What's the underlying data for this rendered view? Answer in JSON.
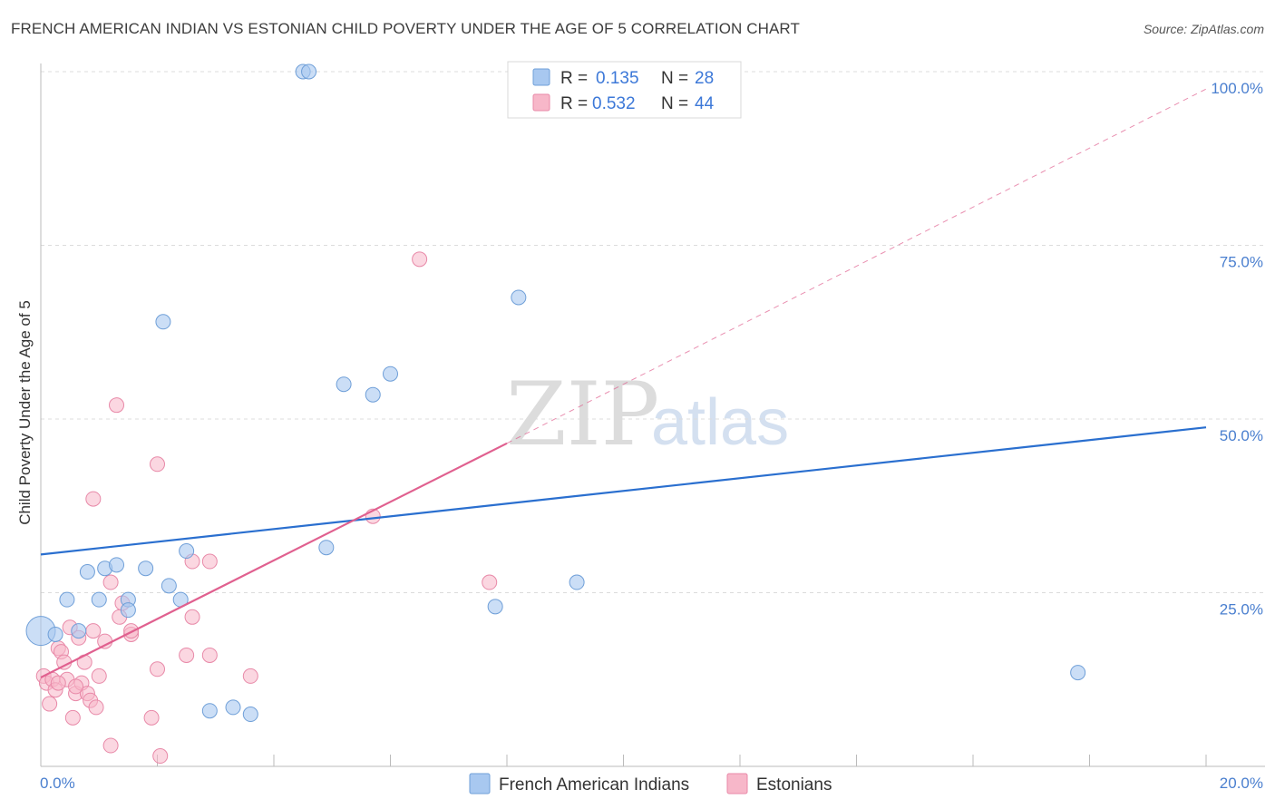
{
  "header": {
    "title": "FRENCH AMERICAN INDIAN VS ESTONIAN CHILD POVERTY UNDER THE AGE OF 5 CORRELATION CHART",
    "source": "Source: ZipAtlas.com"
  },
  "watermark": {
    "part1": "ZIP",
    "part2": "atlas"
  },
  "colors": {
    "blue_fill": "#a8c8f0",
    "blue_stroke": "#6f9fd8",
    "blue_line": "#2a6fcf",
    "pink_fill": "#f7b7c9",
    "pink_stroke": "#e889a8",
    "pink_line": "#e0608f"
  },
  "legend": {
    "rows": [
      {
        "r_label": "R =",
        "r_value": "0.135",
        "n_label": "N =",
        "n_value": "28"
      },
      {
        "r_label": "R =",
        "r_value": "0.532",
        "n_label": "N =",
        "n_value": "44"
      }
    ]
  },
  "chart_data": {
    "type": "scatter",
    "title": "FRENCH AMERICAN INDIAN VS ESTONIAN CHILD POVERTY UNDER THE AGE OF 5 CORRELATION CHART",
    "xlabel": "",
    "ylabel": "Child Poverty Under the Age of 5",
    "xlim": [
      0,
      20
    ],
    "ylim": [
      0,
      100
    ],
    "x_tick_labels": [
      {
        "value": 0,
        "label": "0.0%"
      },
      {
        "value": 20,
        "label": "20.0%"
      }
    ],
    "y_tick_labels": [
      {
        "value": 25,
        "label": "25.0%"
      },
      {
        "value": 50,
        "label": "50.0%"
      },
      {
        "value": 75,
        "label": "75.0%"
      },
      {
        "value": 100,
        "label": "100.0%"
      }
    ],
    "series": [
      {
        "name": "French American Indians",
        "r": 0.135,
        "n": 28,
        "trend": {
          "x": [
            0,
            20
          ],
          "y": [
            30.5,
            48.8
          ],
          "dashed_extension": false
        },
        "points": [
          [
            0.0,
            19.5
          ],
          [
            0.25,
            19.0
          ],
          [
            0.45,
            24.0
          ],
          [
            0.65,
            19.5
          ],
          [
            0.8,
            28.0
          ],
          [
            1.0,
            24.0
          ],
          [
            1.1,
            28.5
          ],
          [
            1.3,
            29.0
          ],
          [
            1.5,
            24.0
          ],
          [
            1.5,
            22.5
          ],
          [
            1.8,
            28.5
          ],
          [
            2.1,
            64.0
          ],
          [
            2.2,
            26.0
          ],
          [
            2.4,
            24.0
          ],
          [
            2.5,
            31.0
          ],
          [
            2.9,
            8.0
          ],
          [
            3.3,
            8.5
          ],
          [
            3.6,
            7.5
          ],
          [
            4.5,
            100.0
          ],
          [
            4.6,
            100.0
          ],
          [
            4.9,
            31.5
          ],
          [
            5.2,
            55.0
          ],
          [
            5.7,
            53.5
          ],
          [
            6.0,
            56.5
          ],
          [
            7.8,
            23.0
          ],
          [
            8.2,
            67.5
          ],
          [
            9.2,
            26.5
          ],
          [
            17.8,
            13.5
          ]
        ]
      },
      {
        "name": "Estonians",
        "r": 0.532,
        "n": 44,
        "trend": {
          "x": [
            0,
            8.0
          ],
          "y": [
            12.8,
            46.5
          ],
          "dashed_extension": true,
          "dash_to": {
            "x": 20,
            "y": 97.5
          }
        },
        "points": [
          [
            0.05,
            13.0
          ],
          [
            0.1,
            12.0
          ],
          [
            0.15,
            9.0
          ],
          [
            0.2,
            12.5
          ],
          [
            0.25,
            11.0
          ],
          [
            0.3,
            17.0
          ],
          [
            0.35,
            16.5
          ],
          [
            0.4,
            15.0
          ],
          [
            0.45,
            12.5
          ],
          [
            0.5,
            20.0
          ],
          [
            0.55,
            7.0
          ],
          [
            0.6,
            10.5
          ],
          [
            0.65,
            18.5
          ],
          [
            0.7,
            12.0
          ],
          [
            0.75,
            15.0
          ],
          [
            0.8,
            10.5
          ],
          [
            0.85,
            9.5
          ],
          [
            0.9,
            19.5
          ],
          [
            0.9,
            38.5
          ],
          [
            0.95,
            8.5
          ],
          [
            1.0,
            13.0
          ],
          [
            1.1,
            18.0
          ],
          [
            1.2,
            3.0
          ],
          [
            1.2,
            26.5
          ],
          [
            1.3,
            52.0
          ],
          [
            1.35,
            21.5
          ],
          [
            1.4,
            23.5
          ],
          [
            1.55,
            19.0
          ],
          [
            1.55,
            19.5
          ],
          [
            1.9,
            7.0
          ],
          [
            2.0,
            43.5
          ],
          [
            2.0,
            14.0
          ],
          [
            2.05,
            1.5
          ],
          [
            2.5,
            16.0
          ],
          [
            2.6,
            21.5
          ],
          [
            2.6,
            29.5
          ],
          [
            2.9,
            16.0
          ],
          [
            2.9,
            29.5
          ],
          [
            3.6,
            13.0
          ],
          [
            5.7,
            36.0
          ],
          [
            6.5,
            73.0
          ],
          [
            7.7,
            26.5
          ],
          [
            0.3,
            12.0
          ],
          [
            0.6,
            11.5
          ]
        ]
      }
    ]
  },
  "bottom_legend": {
    "items": [
      {
        "label": "French American Indians"
      },
      {
        "label": "Estonians"
      }
    ]
  }
}
